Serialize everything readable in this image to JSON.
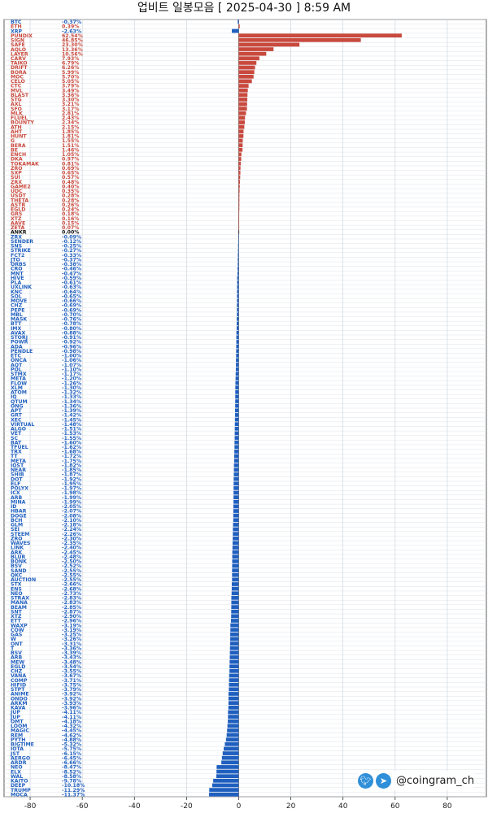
{
  "chart_data": {
    "type": "bar",
    "orientation": "horizontal",
    "title": "업비트 일봉모음 [ 2025-04-30 ]  8:59 AM",
    "xlim": [
      -90,
      95
    ],
    "xticks": [
      -80,
      -60,
      -40,
      -20,
      0,
      20,
      40,
      60,
      80
    ],
    "grid": true,
    "colors": {
      "positive": "#c9493d",
      "negative": "#1f5fbf",
      "zero": "#111111"
    },
    "rows": [
      [
        "BTC",
        "-0.37%",
        -0.37
      ],
      [
        "ETH",
        "0.39%",
        0.39
      ],
      [
        "XRP",
        "-2.63%",
        -2.63
      ],
      [
        "PUNDIX",
        "62.54%",
        62.54
      ],
      [
        "SIGN",
        "46.85%",
        46.85
      ],
      [
        "SAFE",
        "23.30%",
        23.3
      ],
      [
        "AQLO",
        "13.36%",
        13.36
      ],
      [
        "LAYER",
        "10.56%",
        10.56
      ],
      [
        "CARV",
        "7.93%",
        7.93
      ],
      [
        "TAIKO",
        "6.79%",
        6.79
      ],
      [
        "DRIFT",
        "6.26%",
        6.26
      ],
      [
        "BORA",
        "5.99%",
        5.99
      ],
      [
        "MOC",
        "5.70%",
        5.7
      ],
      [
        "CELO",
        "5.05%",
        5.05
      ],
      [
        "CTC",
        "3.79%",
        3.79
      ],
      [
        "MVL",
        "3.49%",
        3.49
      ],
      [
        "BLAST",
        "3.36%",
        3.36
      ],
      [
        "STG",
        "3.30%",
        3.3
      ],
      [
        "AXL",
        "3.21%",
        3.21
      ],
      [
        "SFO",
        "3.17%",
        3.17
      ],
      [
        "MLK",
        "2.81%",
        2.81
      ],
      [
        "FLUEL",
        "2.43%",
        2.43
      ],
      [
        "BOUNTY",
        "2.34%",
        2.34
      ],
      [
        "ATH",
        "2.15%",
        2.15
      ],
      [
        "AHT",
        "1.85%",
        1.85
      ],
      [
        "HUNT",
        "1.81%",
        1.81
      ],
      [
        "G",
        "1.55%",
        1.55
      ],
      [
        "BERA",
        "1.51%",
        1.51
      ],
      [
        "BE",
        "1.46%",
        1.46
      ],
      [
        "ENCH",
        "1.05%",
        1.05
      ],
      [
        "DKA",
        "0.97%",
        0.97
      ],
      [
        "TOKAMAK",
        "0.81%",
        0.81
      ],
      [
        "ZRO",
        "0.69%",
        0.69
      ],
      [
        "SXP",
        "0.65%",
        0.65
      ],
      [
        "SUI",
        "0.57%",
        0.57
      ],
      [
        "ZRX",
        "0.48%",
        0.48
      ],
      [
        "GAME2",
        "0.40%",
        0.4
      ],
      [
        "UDC",
        "0.35%",
        0.35
      ],
      [
        "USDT",
        "0.28%",
        0.28
      ],
      [
        "THETA",
        "0.28%",
        0.28
      ],
      [
        "ASTR",
        "0.26%",
        0.26
      ],
      [
        "EGLD",
        "0.24%",
        0.24
      ],
      [
        "GRS",
        "0.18%",
        0.18
      ],
      [
        "XTZ",
        "0.16%",
        0.16
      ],
      [
        "AAVE",
        "0.15%",
        0.15
      ],
      [
        "ZETA",
        "0.07%",
        0.07
      ],
      [
        "ANKR",
        "0.00%",
        0
      ],
      [
        "ZRX",
        "-0.09%",
        -0.09
      ],
      [
        "SENDER",
        "-0.12%",
        -0.12
      ],
      [
        "SNS",
        "-0.25%",
        -0.25
      ],
      [
        "STRIKE",
        "-0.27%",
        -0.27
      ],
      [
        "FCT2",
        "-0.33%",
        -0.33
      ],
      [
        "JTO",
        "-0.37%",
        -0.37
      ],
      [
        "ORBS",
        "-0.38%",
        -0.38
      ],
      [
        "CRO",
        "-0.46%",
        -0.46
      ],
      [
        "MNT",
        "-0.47%",
        -0.47
      ],
      [
        "HIVE",
        "-0.59%",
        -0.59
      ],
      [
        "PLA",
        "-0.61%",
        -0.61
      ],
      [
        "UXLINK",
        "-0.63%",
        -0.63
      ],
      [
        "KNC",
        "-0.64%",
        -0.64
      ],
      [
        "SOL",
        "-0.65%",
        -0.65
      ],
      [
        "MOVE",
        "-0.66%",
        -0.66
      ],
      [
        "CHZ",
        "-0.69%",
        -0.69
      ],
      [
        "PEPE",
        "-0.69%",
        -0.69
      ],
      [
        "MBL",
        "-0.70%",
        -0.7
      ],
      [
        "MASK",
        "-0.76%",
        -0.76
      ],
      [
        "BTT",
        "-0.78%",
        -0.78
      ],
      [
        "IMX",
        "-0.80%",
        -0.8
      ],
      [
        "AVAX",
        "-0.88%",
        -0.88
      ],
      [
        "STORJ",
        "-0.91%",
        -0.91
      ],
      [
        "POWR",
        "-0.92%",
        -0.92
      ],
      [
        "ADA",
        "-0.96%",
        -0.96
      ],
      [
        "PENDLE",
        "-0.98%",
        -0.98
      ],
      [
        "ETC",
        "-1.00%",
        -1.0
      ],
      [
        "ONCA",
        "-1.06%",
        -1.06
      ],
      [
        "AQT",
        "-1.07%",
        -1.07
      ],
      [
        "POL",
        "-1.10%",
        -1.1
      ],
      [
        "STMX",
        "-1.17%",
        -1.17
      ],
      [
        "META",
        "-1.20%",
        -1.2
      ],
      [
        "FLOW",
        "-1.26%",
        -1.26
      ],
      [
        "XLM",
        "-1.30%",
        -1.3
      ],
      [
        "ATOM",
        "-1.32%",
        -1.32
      ],
      [
        "IQ",
        "-1.33%",
        -1.33
      ],
      [
        "QTUM",
        "-1.34%",
        -1.34
      ],
      [
        "ONG",
        "-1.36%",
        -1.36
      ],
      [
        "APT",
        "-1.39%",
        -1.39
      ],
      [
        "GRT",
        "-1.42%",
        -1.42
      ],
      [
        "XEC",
        "-1.45%",
        -1.45
      ],
      [
        "VIRTUAL",
        "-1.48%",
        -1.48
      ],
      [
        "ALGO",
        "-1.51%",
        -1.51
      ],
      [
        "VET",
        "-1.53%",
        -1.53
      ],
      [
        "SC",
        "-1.55%",
        -1.55
      ],
      [
        "BAT",
        "-1.60%",
        -1.6
      ],
      [
        "TFUEL",
        "-1.62%",
        -1.62
      ],
      [
        "TRX",
        "-1.68%",
        -1.68
      ],
      [
        "TT",
        "-1.72%",
        -1.72
      ],
      [
        "META",
        "-1.75%",
        -1.75
      ],
      [
        "IOST",
        "-1.82%",
        -1.82
      ],
      [
        "NEAR",
        "-1.85%",
        -1.85
      ],
      [
        "SHIB",
        "-1.87%",
        -1.87
      ],
      [
        "DOT",
        "-1.92%",
        -1.92
      ],
      [
        "ELF",
        "-1.95%",
        -1.95
      ],
      [
        "POLYX",
        "-1.97%",
        -1.97
      ],
      [
        "ICX",
        "-1.98%",
        -1.98
      ],
      [
        "ARB",
        "-1.99%",
        -1.99
      ],
      [
        "MINA",
        "-1.99%",
        -1.99
      ],
      [
        "ID",
        "-2.05%",
        -2.05
      ],
      [
        "HBAR",
        "-2.07%",
        -2.07
      ],
      [
        "DOGE",
        "-2.08%",
        -2.08
      ],
      [
        "BCH",
        "-2.10%",
        -2.1
      ],
      [
        "GLM",
        "-2.18%",
        -2.18
      ],
      [
        "SEI",
        "-2.24%",
        -2.24
      ],
      [
        "STEEM",
        "-2.26%",
        -2.26
      ],
      [
        "ZRO",
        "-2.30%",
        -2.3
      ],
      [
        "WAVES",
        "-2.35%",
        -2.35
      ],
      [
        "LINK",
        "-2.40%",
        -2.4
      ],
      [
        "ARK",
        "-2.45%",
        -2.45
      ],
      [
        "BLUR",
        "-2.48%",
        -2.48
      ],
      [
        "BONK",
        "-2.50%",
        -2.5
      ],
      [
        "BSV",
        "-2.52%",
        -2.52
      ],
      [
        "SAND",
        "-2.55%",
        -2.55
      ],
      [
        "QKC",
        "-2.55%",
        -2.55
      ],
      [
        "AUCTION",
        "-2.55%",
        -2.55
      ],
      [
        "STX",
        "-2.66%",
        -2.66
      ],
      [
        "ENS",
        "-2.68%",
        -2.68
      ],
      [
        "NEO",
        "-2.73%",
        -2.73
      ],
      [
        "STRAX",
        "-2.83%",
        -2.83
      ],
      [
        "MANA",
        "-2.83%",
        -2.83
      ],
      [
        "BEAM",
        "-2.85%",
        -2.85
      ],
      [
        "SNT",
        "-2.87%",
        -2.87
      ],
      [
        "XTZ",
        "-2.90%",
        -2.9
      ],
      [
        "ETT",
        "-2.96%",
        -2.96
      ],
      [
        "WAXP",
        "-3.19%",
        -3.19
      ],
      [
        "COW",
        "-3.19%",
        -3.19
      ],
      [
        "GAS",
        "-3.25%",
        -3.25
      ],
      [
        "W",
        "-3.26%",
        -3.26
      ],
      [
        "ONT",
        "-3.31%",
        -3.31
      ],
      [
        "T",
        "-3.36%",
        -3.36
      ],
      [
        "BSV",
        "-3.39%",
        -3.39
      ],
      [
        "ARB",
        "-3.43%",
        -3.43
      ],
      [
        "MEW",
        "-3.48%",
        -3.48
      ],
      [
        "EGLD",
        "-3.54%",
        -3.54
      ],
      [
        "CHZ",
        "-3.55%",
        -3.55
      ],
      [
        "VANA",
        "-3.67%",
        -3.67
      ],
      [
        "COMP",
        "-3.71%",
        -3.71
      ],
      [
        "HIFID",
        "-3.75%",
        -3.75
      ],
      [
        "STPT",
        "-3.79%",
        -3.79
      ],
      [
        "ANIME",
        "-3.92%",
        -3.92
      ],
      [
        "ONDO",
        "-3.92%",
        -3.92
      ],
      [
        "ARKM",
        "-3.93%",
        -3.93
      ],
      [
        "KAVA",
        "-3.96%",
        -3.96
      ],
      [
        "JUP",
        "-4.11%",
        -4.11
      ],
      [
        "JUP",
        "-4.11%",
        -4.11
      ],
      [
        "OMT",
        "-4.18%",
        -4.18
      ],
      [
        "LOOM",
        "-4.32%",
        -4.32
      ],
      [
        "MAGIC",
        "-4.45%",
        -4.45
      ],
      [
        "REM",
        "-4.62%",
        -4.62
      ],
      [
        "PYTH",
        "-4.88%",
        -4.88
      ],
      [
        "BIGTIME",
        "-5.32%",
        -5.32
      ],
      [
        "IOTA",
        "-5.75%",
        -5.75
      ],
      [
        "JST",
        "-6.15%",
        -6.15
      ],
      [
        "AERGO",
        "-6.45%",
        -6.45
      ],
      [
        "ARDR",
        "-6.66%",
        -6.66
      ],
      [
        "NEO",
        "-8.47%",
        -8.47
      ],
      [
        "ELX",
        "-8.52%",
        -8.52
      ],
      [
        "WAL",
        "-8.58%",
        -8.58
      ],
      [
        "KAITO",
        "-9.78%",
        -9.78
      ],
      [
        "DEEP",
        "-10.18%",
        -10.18
      ],
      [
        "TRUMP",
        "-11.29%",
        -11.29
      ],
      [
        "MOCA",
        "-11.37%",
        -11.37
      ]
    ]
  },
  "watermark": {
    "handle": "@coingram_ch",
    "icons": [
      "twitter-bird-icon",
      "telegram-plane-icon"
    ]
  }
}
